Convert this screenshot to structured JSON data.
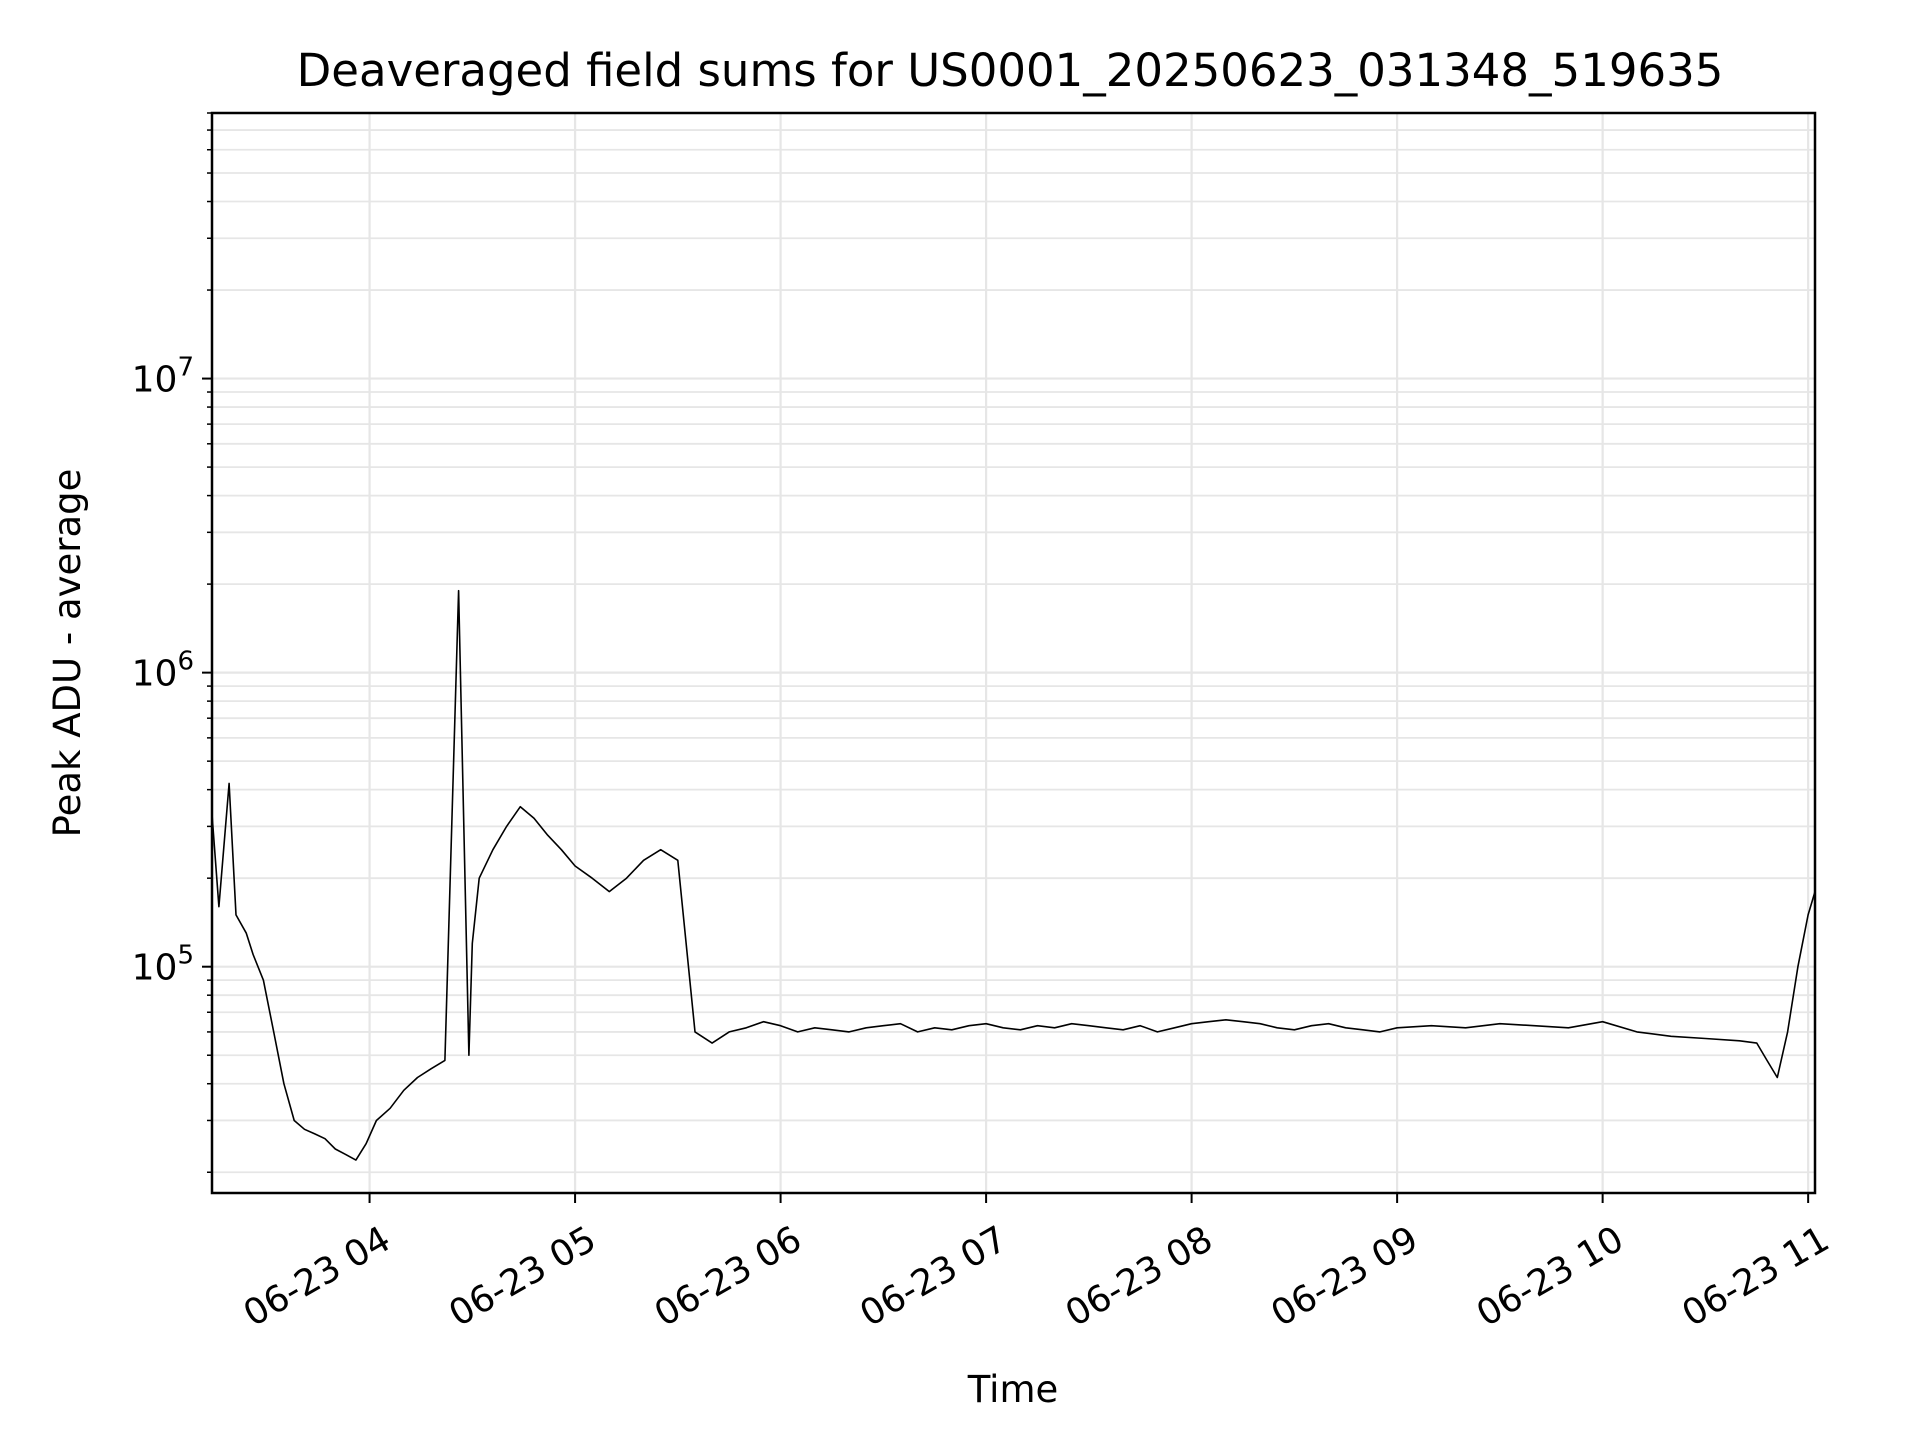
{
  "chart_data": {
    "type": "line",
    "title": "Deaveraged field sums for US0001_20250623_031348_519635",
    "xlabel": "Time",
    "ylabel": "Peak ADU - average",
    "y_scale": "log",
    "ylim": [
      17000,
      80000000
    ],
    "xlim": [
      "2025-06-23 03:14",
      "2025-06-23 11:02"
    ],
    "grid": true,
    "x_ticks": [
      "06-23 04",
      "06-23 05",
      "06-23 06",
      "06-23 07",
      "06-23 08",
      "06-23 09",
      "06-23 10",
      "06-23 11"
    ],
    "y_ticks": [
      {
        "base": "10",
        "exp": "5",
        "value": 100000
      },
      {
        "base": "10",
        "exp": "6",
        "value": 1000000
      },
      {
        "base": "10",
        "exp": "7",
        "value": 10000000
      }
    ],
    "series": [
      {
        "color": "#000000",
        "x": [
          "2025-06-23 03:14",
          "2025-06-23 03:16",
          "2025-06-23 03:19",
          "2025-06-23 03:21",
          "2025-06-23 03:24",
          "2025-06-23 03:26",
          "2025-06-23 03:29",
          "2025-06-23 03:32",
          "2025-06-23 03:35",
          "2025-06-23 03:38",
          "2025-06-23 03:41",
          "2025-06-23 03:44",
          "2025-06-23 03:47",
          "2025-06-23 03:50",
          "2025-06-23 03:53",
          "2025-06-23 03:56",
          "2025-06-23 03:59",
          "2025-06-23 04:02",
          "2025-06-23 04:06",
          "2025-06-23 04:10",
          "2025-06-23 04:14",
          "2025-06-23 04:18",
          "2025-06-23 04:22",
          "2025-06-23 04:26",
          "2025-06-23 04:29",
          "2025-06-23 04:30",
          "2025-06-23 04:32",
          "2025-06-23 04:36",
          "2025-06-23 04:40",
          "2025-06-23 04:44",
          "2025-06-23 04:48",
          "2025-06-23 04:52",
          "2025-06-23 04:56",
          "2025-06-23 05:00",
          "2025-06-23 05:05",
          "2025-06-23 05:10",
          "2025-06-23 05:15",
          "2025-06-23 05:20",
          "2025-06-23 05:25",
          "2025-06-23 05:30",
          "2025-06-23 05:35",
          "2025-06-23 05:40",
          "2025-06-23 05:45",
          "2025-06-23 05:50",
          "2025-06-23 05:55",
          "2025-06-23 06:00",
          "2025-06-23 06:05",
          "2025-06-23 06:10",
          "2025-06-23 06:15",
          "2025-06-23 06:20",
          "2025-06-23 06:25",
          "2025-06-23 06:30",
          "2025-06-23 06:35",
          "2025-06-23 06:40",
          "2025-06-23 06:45",
          "2025-06-23 06:50",
          "2025-06-23 06:55",
          "2025-06-23 07:00",
          "2025-06-23 07:05",
          "2025-06-23 07:10",
          "2025-06-23 07:15",
          "2025-06-23 07:20",
          "2025-06-23 07:25",
          "2025-06-23 07:30",
          "2025-06-23 07:35",
          "2025-06-23 07:40",
          "2025-06-23 07:45",
          "2025-06-23 07:50",
          "2025-06-23 07:55",
          "2025-06-23 08:00",
          "2025-06-23 08:05",
          "2025-06-23 08:10",
          "2025-06-23 08:15",
          "2025-06-23 08:20",
          "2025-06-23 08:25",
          "2025-06-23 08:30",
          "2025-06-23 08:35",
          "2025-06-23 08:40",
          "2025-06-23 08:45",
          "2025-06-23 08:50",
          "2025-06-23 08:55",
          "2025-06-23 09:00",
          "2025-06-23 09:10",
          "2025-06-23 09:20",
          "2025-06-23 09:30",
          "2025-06-23 09:40",
          "2025-06-23 09:50",
          "2025-06-23 10:00",
          "2025-06-23 10:10",
          "2025-06-23 10:20",
          "2025-06-23 10:30",
          "2025-06-23 10:40",
          "2025-06-23 10:45",
          "2025-06-23 10:48",
          "2025-06-23 10:51",
          "2025-06-23 10:54",
          "2025-06-23 10:57",
          "2025-06-23 11:00",
          "2025-06-23 11:02"
        ],
        "y": [
          330000,
          160000,
          420000,
          150000,
          130000,
          110000,
          90000,
          60000,
          40000,
          30000,
          28000,
          27000,
          26000,
          24000,
          23000,
          22000,
          25000,
          30000,
          33000,
          38000,
          42000,
          45000,
          48000,
          1900000,
          50000,
          120000,
          200000,
          250000,
          300000,
          350000,
          320000,
          280000,
          250000,
          220000,
          200000,
          180000,
          200000,
          230000,
          250000,
          230000,
          60000,
          55000,
          60000,
          62000,
          65000,
          63000,
          60000,
          62000,
          61000,
          60000,
          62000,
          63000,
          64000,
          60000,
          62000,
          61000,
          63000,
          64000,
          62000,
          61000,
          63000,
          62000,
          64000,
          63000,
          62000,
          61000,
          63000,
          60000,
          62000,
          64000,
          65000,
          66000,
          65000,
          64000,
          62000,
          61000,
          63000,
          64000,
          62000,
          61000,
          60000,
          62000,
          63000,
          62000,
          64000,
          63000,
          62000,
          65000,
          60000,
          58000,
          57000,
          56000,
          55000,
          48000,
          42000,
          60000,
          100000,
          150000,
          180000
        ]
      }
    ]
  }
}
